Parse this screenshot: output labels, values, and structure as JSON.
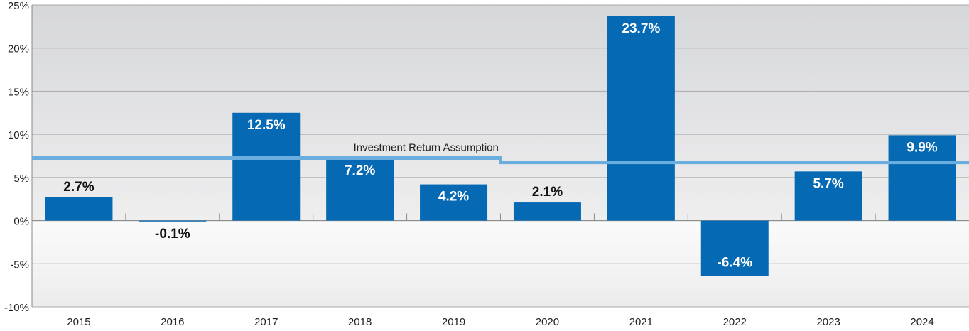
{
  "chart_data": {
    "type": "bar",
    "categories": [
      "2015",
      "2016",
      "2017",
      "2018",
      "2019",
      "2020",
      "2021",
      "2022",
      "2023",
      "2024"
    ],
    "values": [
      2.7,
      -0.1,
      12.5,
      7.2,
      4.2,
      2.1,
      23.7,
      -6.4,
      5.7,
      9.9
    ],
    "value_labels": [
      "2.7%",
      "-0.1%",
      "12.5%",
      "7.2%",
      "4.2%",
      "2.1%",
      "23.7%",
      "-6.4%",
      "5.7%",
      "9.9%"
    ],
    "color": "#0569b4",
    "ylim": [
      -10,
      25
    ],
    "yticks": [
      {
        "value": -10,
        "label": "-10%"
      },
      {
        "value": -5,
        "label": "-5%"
      },
      {
        "value": 0,
        "label": "0%"
      },
      {
        "value": 5,
        "label": "5%"
      },
      {
        "value": 10,
        "label": "10%"
      },
      {
        "value": 15,
        "label": "15%"
      },
      {
        "value": 20,
        "label": "20%"
      },
      {
        "value": 25,
        "label": "25%"
      }
    ],
    "grid": true,
    "reference_line": {
      "label": "Investment Return Assumption",
      "color": "#6aaee0",
      "values": [
        7.25,
        7.25,
        7.25,
        7.25,
        7.25,
        6.75,
        6.75,
        6.75,
        6.75,
        6.75
      ]
    }
  }
}
